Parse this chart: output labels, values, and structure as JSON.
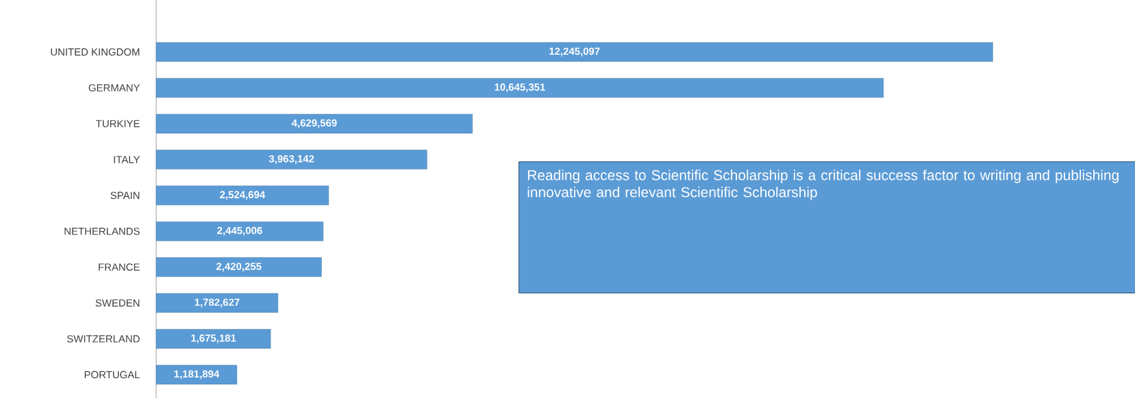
{
  "chart_data": {
    "type": "bar",
    "orientation": "horizontal",
    "categories": [
      "UNITED KINGDOM",
      "GERMANY",
      "TURKIYE",
      "ITALY",
      "SPAIN",
      "NETHERLANDS",
      "FRANCE",
      "SWEDEN",
      "SWITZERLAND",
      "PORTUGAL"
    ],
    "values": [
      12245097,
      10645351,
      4629569,
      3963142,
      2524694,
      2445006,
      2420255,
      1782627,
      1675181,
      1181894
    ],
    "color": "#5b9bd5",
    "value_labels": [
      "12,245,097",
      "10,645,351",
      "4,629,569",
      "3,963,142",
      "2,524,694",
      "2,445,006",
      "2,420,255",
      "1,782,627",
      "1,675,181",
      "1,181,894"
    ],
    "annotations": [
      "Reading access to Scientific Scholarship is a critical success factor to writing and publishing innovative and relevant Scientific Scholarship"
    ]
  }
}
